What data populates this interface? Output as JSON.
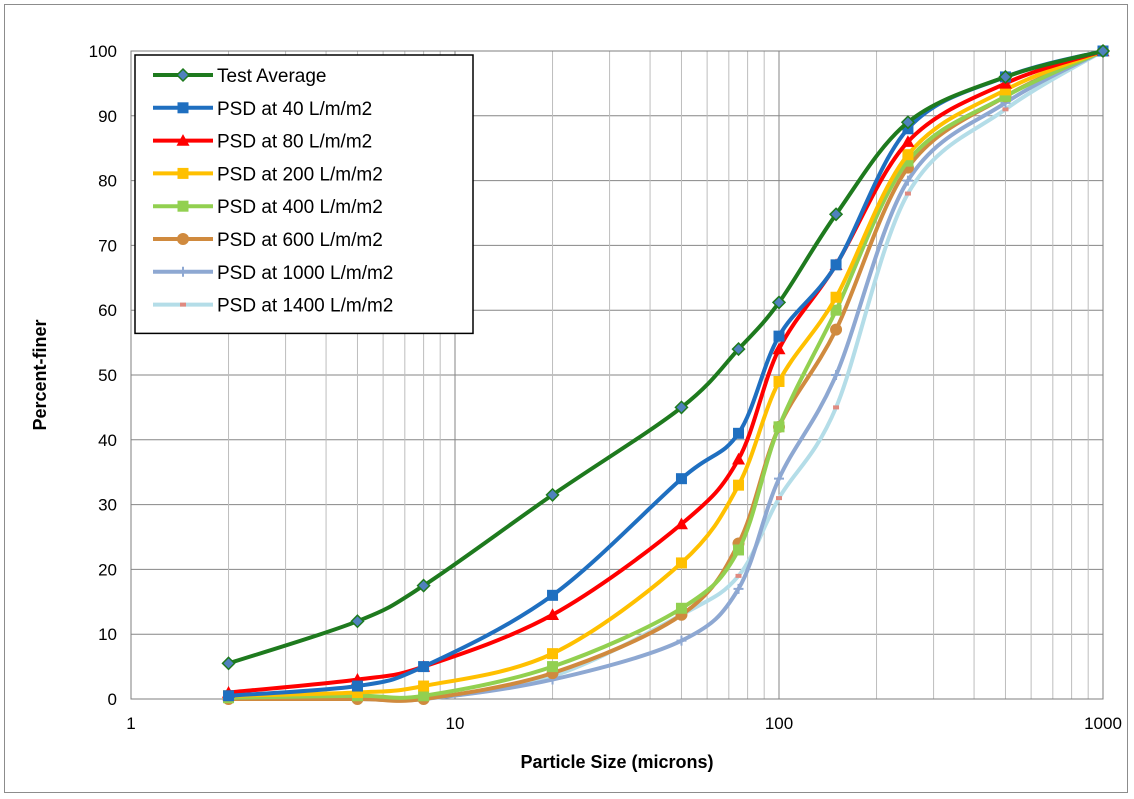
{
  "chart_data": {
    "type": "line",
    "xscale": "log",
    "xlim": [
      1,
      1000
    ],
    "ylim": [
      0,
      100
    ],
    "xlabel": "Particle Size (microns)",
    "ylabel": "Percent-finer",
    "x_ticks": [
      1,
      10,
      100,
      1000
    ],
    "x_tick_labels": [
      "1",
      "10",
      "100",
      "1000"
    ],
    "y_ticks": [
      0,
      10,
      20,
      30,
      40,
      50,
      60,
      70,
      80,
      90,
      100
    ],
    "y_tick_labels": [
      "0",
      "10",
      "20",
      "30",
      "40",
      "50",
      "60",
      "70",
      "80",
      "90",
      "100"
    ],
    "grid": true,
    "legend_position": "top-left",
    "x": [
      2,
      5,
      8,
      20,
      50,
      75,
      100,
      150,
      250,
      500,
      1000
    ],
    "series": [
      {
        "name": "Test Average",
        "color": "#1e7a1e",
        "marker": "diamond",
        "values": [
          5.5,
          12,
          17.5,
          31.5,
          45,
          54,
          61.2,
          74.8,
          89,
          96,
          100
        ]
      },
      {
        "name": "PSD at 40 L/m/m2",
        "color": "#1f6fc0",
        "marker": "square",
        "values": [
          0.5,
          2,
          5,
          16,
          34,
          41,
          56,
          67,
          88,
          96,
          100
        ]
      },
      {
        "name": "PSD at 80 L/m/m2",
        "color": "#ff0000",
        "marker": "triangle",
        "values": [
          1,
          3,
          5,
          13,
          27,
          37,
          54,
          67,
          86,
          95,
          100
        ]
      },
      {
        "name": "PSD at 200 L/m/m2",
        "color": "#ffc000",
        "marker": "square",
        "values": [
          0.5,
          1,
          2,
          7,
          21,
          33,
          49,
          62,
          84,
          94,
          100
        ]
      },
      {
        "name": "PSD at 400 L/m/m2",
        "color": "#92d050",
        "marker": "square",
        "values": [
          0.2,
          0.5,
          0.5,
          5,
          14,
          23,
          42,
          60,
          83,
          93,
          100
        ]
      },
      {
        "name": "PSD at 600 L/m/m2",
        "color": "#d08a3e",
        "marker": "circle",
        "values": [
          0,
          0,
          0,
          4,
          13,
          24,
          42,
          57,
          82,
          93,
          100
        ]
      },
      {
        "name": "PSD at 1000 L/m/m2",
        "color": "#8ea8d2",
        "marker": "plus",
        "values": [
          0,
          0,
          0,
          3,
          9,
          17,
          34,
          50,
          80,
          92,
          100
        ]
      },
      {
        "name": "PSD at 1400 L/m/m2",
        "color": "#b4dde8",
        "marker": "dash",
        "values": [
          0,
          0,
          0,
          3.5,
          13,
          19,
          31,
          45,
          78,
          91,
          100
        ]
      }
    ]
  }
}
